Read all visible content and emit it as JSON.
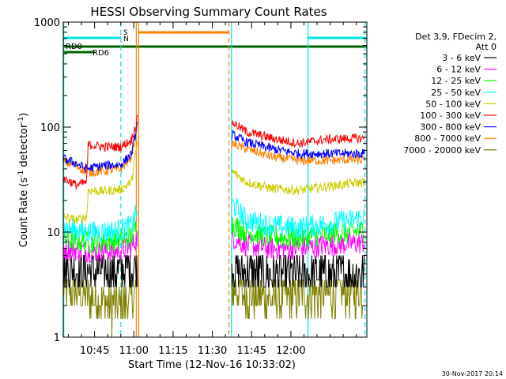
{
  "chart_data": {
    "type": "line",
    "title": "HESSI Observing Summary Count Rates",
    "xlabel": "Start Time (12-Nov-16 10:33:02)",
    "ylabel_main": "Count Rate (s",
    "ylabel_sup1": "-1",
    "ylabel_mid": " detector",
    "ylabel_sup2": "-1",
    "ylabel_end": ")",
    "yscale": "log",
    "ylim": [
      1,
      1000
    ],
    "xlim_minutes": [
      0,
      116
    ],
    "x_ticks": [
      {
        "label": "10:45",
        "minute": 11.97
      },
      {
        "label": "11:00",
        "minute": 26.97
      },
      {
        "label": "11:15",
        "minute": 41.97
      },
      {
        "label": "11:30",
        "minute": 56.97
      },
      {
        "label": "11:45",
        "minute": 71.97
      },
      {
        "label": "12:00",
        "minute": 86.97
      }
    ],
    "y_ticks": [
      {
        "label": "1",
        "value": 1
      },
      {
        "label": "10",
        "value": 10
      },
      {
        "label": "100",
        "value": 100
      },
      {
        "label": "1000",
        "value": 1000
      }
    ],
    "legend_header": [
      "Det 3,9, FDecim 2,",
      "Att 0"
    ],
    "timestamp": "30-Nov-2017 20:14",
    "flags": {
      "rd0_label": "RD0",
      "rd6_label": "RD6",
      "s_label": "S",
      "n_label": "N",
      "rd0_color": "#006400",
      "rd6_color": "#006400",
      "saa_color": "#ff7f00",
      "night_color": "#00e5e5",
      "saa_interval": [
        28.5,
        63.5
      ],
      "night_intervals": [
        [
          0,
          22
        ],
        [
          93.5,
          116
        ]
      ],
      "rd0_interval": [
        0,
        12
      ],
      "rd6_interval": [
        0,
        116
      ]
    },
    "vertical_lines": [
      {
        "minute": 0.2,
        "color": "#00e5e5",
        "style": "solid"
      },
      {
        "minute": 22.0,
        "color": "#00e5e5",
        "style": "dashed"
      },
      {
        "minute": 27.9,
        "color": "#ff7f00",
        "style": "solid"
      },
      {
        "minute": 28.8,
        "color": "#ff7f00",
        "style": "solid"
      },
      {
        "minute": 63.3,
        "color": "#ff7f00",
        "style": "dashed"
      },
      {
        "minute": 64.3,
        "color": "#00e5e5",
        "style": "solid"
      },
      {
        "minute": 93.5,
        "color": "#00e5e5",
        "style": "solid"
      },
      {
        "minute": 115.3,
        "color": "#00e5e5",
        "style": "dashed"
      }
    ],
    "series": [
      {
        "name": "3 - 6 keV",
        "color": "#000000",
        "seg1": [
          [
            0,
            4.5
          ],
          [
            10,
            4.3
          ],
          [
            20,
            4.3
          ],
          [
            26,
            4.6
          ],
          [
            28.3,
            5.2
          ]
        ],
        "seg2": [
          [
            64.4,
            4.5
          ],
          [
            70,
            4.1
          ],
          [
            80,
            3.9
          ],
          [
            90,
            3.9
          ],
          [
            100,
            4.0
          ],
          [
            110,
            4.0
          ],
          [
            115,
            4.0
          ]
        ]
      },
      {
        "name": "6 - 12 keV",
        "color": "#ff00ff",
        "seg1": [
          [
            0,
            7.0
          ],
          [
            10,
            6.6
          ],
          [
            20,
            6.6
          ],
          [
            26,
            7.2
          ],
          [
            28.3,
            9.0
          ]
        ],
        "seg2": [
          [
            64.4,
            9.0
          ],
          [
            70,
            7.5
          ],
          [
            80,
            7.0
          ],
          [
            90,
            7.0
          ],
          [
            100,
            7.5
          ],
          [
            110,
            7.8
          ],
          [
            115,
            8.0
          ]
        ]
      },
      {
        "name": "12 - 25 keV",
        "color": "#00ff00",
        "seg1": [
          [
            0,
            8.5
          ],
          [
            10,
            8.0
          ],
          [
            20,
            8.3
          ],
          [
            26,
            9.0
          ],
          [
            28.3,
            12
          ]
        ],
        "seg2": [
          [
            64.4,
            12
          ],
          [
            70,
            10
          ],
          [
            80,
            9.0
          ],
          [
            90,
            8.8
          ],
          [
            100,
            9.5
          ],
          [
            110,
            10.0
          ],
          [
            115,
            10.5
          ]
        ]
      },
      {
        "name": "25 - 50 keV",
        "color": "#00ffff",
        "seg1": [
          [
            0,
            11
          ],
          [
            10,
            10
          ],
          [
            20,
            10.3
          ],
          [
            26,
            11.5
          ],
          [
            28.3,
            16
          ]
        ],
        "seg2": [
          [
            64.4,
            19
          ],
          [
            70,
            13
          ],
          [
            80,
            11.5
          ],
          [
            90,
            11
          ],
          [
            100,
            12
          ],
          [
            110,
            13
          ],
          [
            115,
            14
          ]
        ]
      },
      {
        "name": "50 - 100 keV",
        "color": "#cccc00",
        "seg1": [
          [
            0,
            14
          ],
          [
            5,
            13
          ],
          [
            9,
            14
          ],
          [
            9.5,
            25
          ],
          [
            15,
            24.5
          ],
          [
            22,
            25.5
          ],
          [
            26,
            30
          ],
          [
            28.3,
            70
          ]
        ],
        "seg2": [
          [
            64.4,
            38
          ],
          [
            70,
            30
          ],
          [
            80,
            26
          ],
          [
            90,
            25
          ],
          [
            100,
            27
          ],
          [
            110,
            29
          ],
          [
            115,
            30
          ]
        ]
      },
      {
        "name": "100 - 300 keV",
        "color": "#ff0000",
        "seg1": [
          [
            0,
            33
          ],
          [
            5,
            28
          ],
          [
            9,
            30
          ],
          [
            9.5,
            68
          ],
          [
            15,
            65
          ],
          [
            22,
            65
          ],
          [
            26,
            75
          ],
          [
            28.3,
            118
          ]
        ],
        "seg2": [
          [
            64.4,
            112
          ],
          [
            70,
            90
          ],
          [
            80,
            78
          ],
          [
            90,
            70
          ],
          [
            100,
            76
          ],
          [
            110,
            78
          ],
          [
            115,
            78
          ]
        ]
      },
      {
        "name": "300 - 800 keV",
        "color": "#0000ff",
        "seg1": [
          [
            0,
            50
          ],
          [
            5,
            45
          ],
          [
            9,
            40
          ],
          [
            15,
            43
          ],
          [
            22,
            44
          ],
          [
            26,
            55
          ],
          [
            28.3,
            105
          ]
        ],
        "seg2": [
          [
            64.4,
            85
          ],
          [
            70,
            72
          ],
          [
            80,
            62
          ],
          [
            90,
            56
          ],
          [
            100,
            56
          ],
          [
            110,
            56
          ],
          [
            115,
            56
          ]
        ]
      },
      {
        "name": "800 - 7000 keV",
        "color": "#ff7f00",
        "seg1": [
          [
            0,
            47
          ],
          [
            5,
            43
          ],
          [
            9,
            37
          ],
          [
            15,
            38
          ],
          [
            22,
            40
          ],
          [
            26,
            52
          ],
          [
            28.3,
            100
          ]
        ],
        "seg2": [
          [
            64.4,
            70
          ],
          [
            70,
            62
          ],
          [
            80,
            52
          ],
          [
            90,
            48
          ],
          [
            100,
            48
          ],
          [
            110,
            49
          ],
          [
            115,
            48
          ]
        ]
      },
      {
        "name": "7000 - 20000 keV",
        "color": "#808000",
        "seg1": [
          [
            0,
            3.0
          ],
          [
            10,
            2.4
          ],
          [
            20,
            2.0
          ],
          [
            26,
            2.2
          ],
          [
            28.3,
            3.0
          ]
        ],
        "seg2": [
          [
            64.4,
            3.0
          ],
          [
            70,
            2.6
          ],
          [
            80,
            2.3
          ],
          [
            90,
            2.5
          ],
          [
            100,
            2.6
          ],
          [
            110,
            2.7
          ],
          [
            115,
            2.7
          ]
        ]
      }
    ]
  }
}
